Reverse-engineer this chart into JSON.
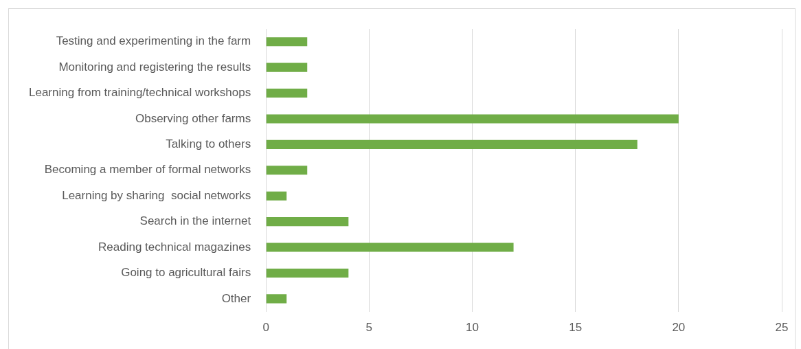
{
  "chart_data": {
    "type": "bar",
    "orientation": "horizontal",
    "categories": [
      "Testing and experimenting in the farm",
      "Monitoring and registering the results",
      "Learning from training/technical workshops",
      "Observing other farms",
      "Talking to others",
      "Becoming a member of formal networks",
      "Learning by sharing  social networks",
      "Search in the internet",
      "Reading technical magazines",
      "Going to agricultural fairs",
      "Other"
    ],
    "values": [
      2,
      2,
      2,
      20,
      18,
      2,
      1,
      4,
      12,
      4,
      1
    ],
    "color": "#70ad47",
    "xlim": [
      0,
      25
    ],
    "xticks": [
      0,
      5,
      10,
      15,
      20,
      25
    ],
    "grid": "x",
    "legend": false
  }
}
